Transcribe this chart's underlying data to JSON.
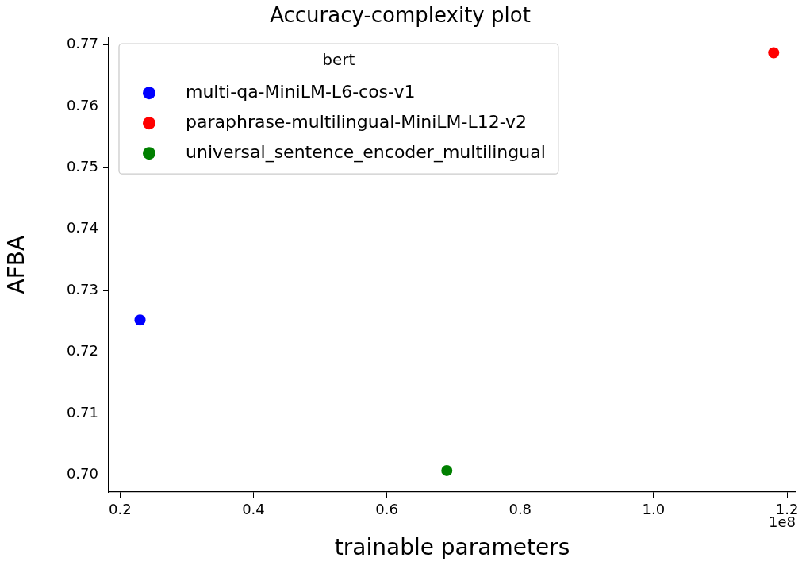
{
  "chart_data": {
    "type": "scatter",
    "title": "Accuracy-complexity plot",
    "xlabel": "trainable parameters",
    "ylabel": "AFBA",
    "legend_title": "bert",
    "legend": "top left",
    "annotations": [
      "1e8"
    ],
    "series": [
      {
        "name": "multi-qa-MiniLM-L6-cos-v1",
        "color": "#0000ff",
        "x": [
          0.23
        ],
        "values": [
          0.7252
        ]
      },
      {
        "name": "paraphrase-multilingual-MiniLM-L12-v2",
        "color": "#ff0000",
        "x": [
          1.18
        ],
        "values": [
          0.7687
        ]
      },
      {
        "name": "universal_sentence_encoder_multilingual",
        "color": "#008000",
        "x": [
          0.69
        ],
        "values": [
          0.7007
        ]
      }
    ],
    "xlim": [
      0.183,
      1.213
    ],
    "ylim": [
      0.6972,
      0.7712
    ],
    "xticks": [
      {
        "value": 0.2,
        "label": "0.2"
      },
      {
        "value": 0.4,
        "label": "0.4"
      },
      {
        "value": 0.6,
        "label": "0.6"
      },
      {
        "value": 0.8,
        "label": "0.8"
      },
      {
        "value": 1.0,
        "label": "1.0"
      },
      {
        "value": 1.2,
        "label": "1.2"
      }
    ],
    "yticks": [
      {
        "value": 0.7,
        "label": "0.70"
      },
      {
        "value": 0.71,
        "label": "0.71"
      },
      {
        "value": 0.72,
        "label": "0.72"
      },
      {
        "value": 0.73,
        "label": "0.73"
      },
      {
        "value": 0.74,
        "label": "0.74"
      },
      {
        "value": 0.75,
        "label": "0.75"
      },
      {
        "value": 0.76,
        "label": "0.76"
      },
      {
        "value": 0.77,
        "label": "0.77"
      }
    ],
    "marker": "circle",
    "grid": false
  }
}
